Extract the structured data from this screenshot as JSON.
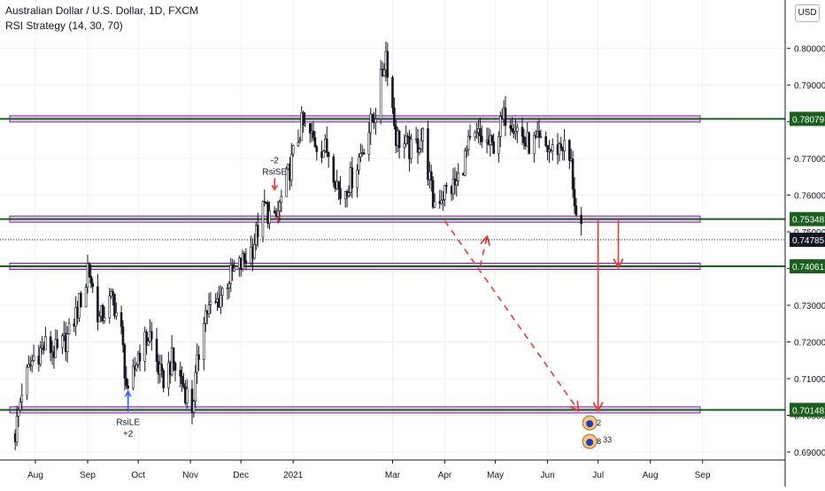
{
  "header": {
    "title": "Australian Dollar / U.S. Dollar, 1D, FXCM",
    "indicator": "RSI Strategy (14, 30, 70)",
    "currency": "USD"
  },
  "colors": {
    "up_candle": "#131722",
    "down_candle": "#131722",
    "zone_fill": "#e1bee7",
    "zone_border": "#7b1fa2",
    "zone_line": "#1b5e20",
    "price_label_bg": "#1b5e20",
    "current_price_bg": "#131722",
    "arrow": "#e53935",
    "signal_long": "#2962ff",
    "signal_short": "#e53935",
    "grid": "#eef0f3"
  },
  "chart_data": {
    "type": "candlestick",
    "symbol": "AUDUSD",
    "interval": "1D",
    "ylim": [
      0.683,
      0.8115
    ],
    "y_ticks": [
      "0.69000",
      "0.70000",
      "0.71000",
      "0.72000",
      "0.73000",
      "0.74000",
      "0.75000",
      "0.76000",
      "0.77000",
      "0.78000",
      "0.79000",
      "0.80000"
    ],
    "x_ticks": [
      "Aug",
      "Sep",
      "Oct",
      "Nov",
      "Dec",
      "2021",
      "Mar",
      "Apr",
      "May",
      "Jun",
      "Jul",
      "Aug",
      "Sep"
    ],
    "current_price": "0.74785",
    "price_path": [
      [
        "2020-07-20",
        0.695
      ],
      [
        "2020-07-24",
        0.707
      ],
      [
        "2020-07-31",
        0.716
      ],
      [
        "2020-08-07",
        0.719
      ],
      [
        "2020-08-14",
        0.717
      ],
      [
        "2020-08-21",
        0.722
      ],
      [
        "2020-08-31",
        0.736
      ],
      [
        "2020-09-01",
        0.741
      ],
      [
        "2020-09-08",
        0.726
      ],
      [
        "2020-09-16",
        0.732
      ],
      [
        "2020-09-21",
        0.722
      ],
      [
        "2020-09-25",
        0.704
      ],
      [
        "2020-10-01",
        0.717
      ],
      [
        "2020-10-08",
        0.722
      ],
      [
        "2020-10-15",
        0.709
      ],
      [
        "2020-10-21",
        0.715
      ],
      [
        "2020-10-28",
        0.708
      ],
      [
        "2020-11-02",
        0.702
      ],
      [
        "2020-11-09",
        0.728
      ],
      [
        "2020-11-16",
        0.73
      ],
      [
        "2020-11-23",
        0.737
      ],
      [
        "2020-12-01",
        0.741
      ],
      [
        "2020-12-08",
        0.746
      ],
      [
        "2020-12-15",
        0.757
      ],
      [
        "2020-12-21",
        0.752
      ],
      [
        "2020-12-31",
        0.769
      ],
      [
        "2021-01-06",
        0.779
      ],
      [
        "2021-01-15",
        0.774
      ],
      [
        "2021-01-22",
        0.772
      ],
      [
        "2021-01-29",
        0.76
      ],
      [
        "2021-02-05",
        0.765
      ],
      [
        "2021-02-12",
        0.774
      ],
      [
        "2021-02-19",
        0.783
      ],
      [
        "2021-02-25",
        0.799
      ],
      [
        "2021-03-03",
        0.776
      ],
      [
        "2021-03-12",
        0.772
      ],
      [
        "2021-03-19",
        0.776
      ],
      [
        "2021-03-25",
        0.758
      ],
      [
        "2021-04-01",
        0.761
      ],
      [
        "2021-04-08",
        0.763
      ],
      [
        "2021-04-15",
        0.773
      ],
      [
        "2021-04-21",
        0.776
      ],
      [
        "2021-04-29",
        0.773
      ],
      [
        "2021-05-07",
        0.782
      ],
      [
        "2021-05-12",
        0.78
      ],
      [
        "2021-05-19",
        0.774
      ],
      [
        "2021-05-26",
        0.774
      ],
      [
        "2021-06-04",
        0.772
      ],
      [
        "2021-06-10",
        0.774
      ],
      [
        "2021-06-15",
        0.768
      ],
      [
        "2021-06-18",
        0.754
      ],
      [
        "2021-06-21",
        0.749
      ]
    ],
    "zones": [
      {
        "price": 0.78079,
        "label": "0.78079"
      },
      {
        "price": 0.75348,
        "label": "0.75348"
      },
      {
        "price": 0.74061,
        "label": "0.74061"
      },
      {
        "price": 0.70148,
        "label": "0.70148"
      }
    ],
    "signals": [
      {
        "date": "2020-09-25",
        "type": "long",
        "label": "RsiLE",
        "qty": "+2"
      },
      {
        "date": "2020-12-21",
        "type": "short",
        "label": "RsiSE",
        "qty": "-2"
      }
    ],
    "projections": [
      {
        "style": "solid",
        "from": [
          "2021-07-01",
          0.7535
        ],
        "to": [
          "2021-07-01",
          0.7015
        ]
      },
      {
        "style": "solid",
        "from": [
          "2021-07-13",
          0.7535
        ],
        "to": [
          "2021-07-13",
          0.7406
        ]
      },
      {
        "style": "dashed",
        "from": [
          "2021-04-01",
          0.753
        ],
        "to": [
          "2021-06-19",
          0.7015
        ]
      },
      {
        "style": "dashed",
        "from": [
          "2021-04-22",
          0.7406
        ],
        "to": [
          "2021-04-26",
          0.7485
        ]
      }
    ],
    "events": [
      "2",
      "8",
      "33"
    ]
  }
}
